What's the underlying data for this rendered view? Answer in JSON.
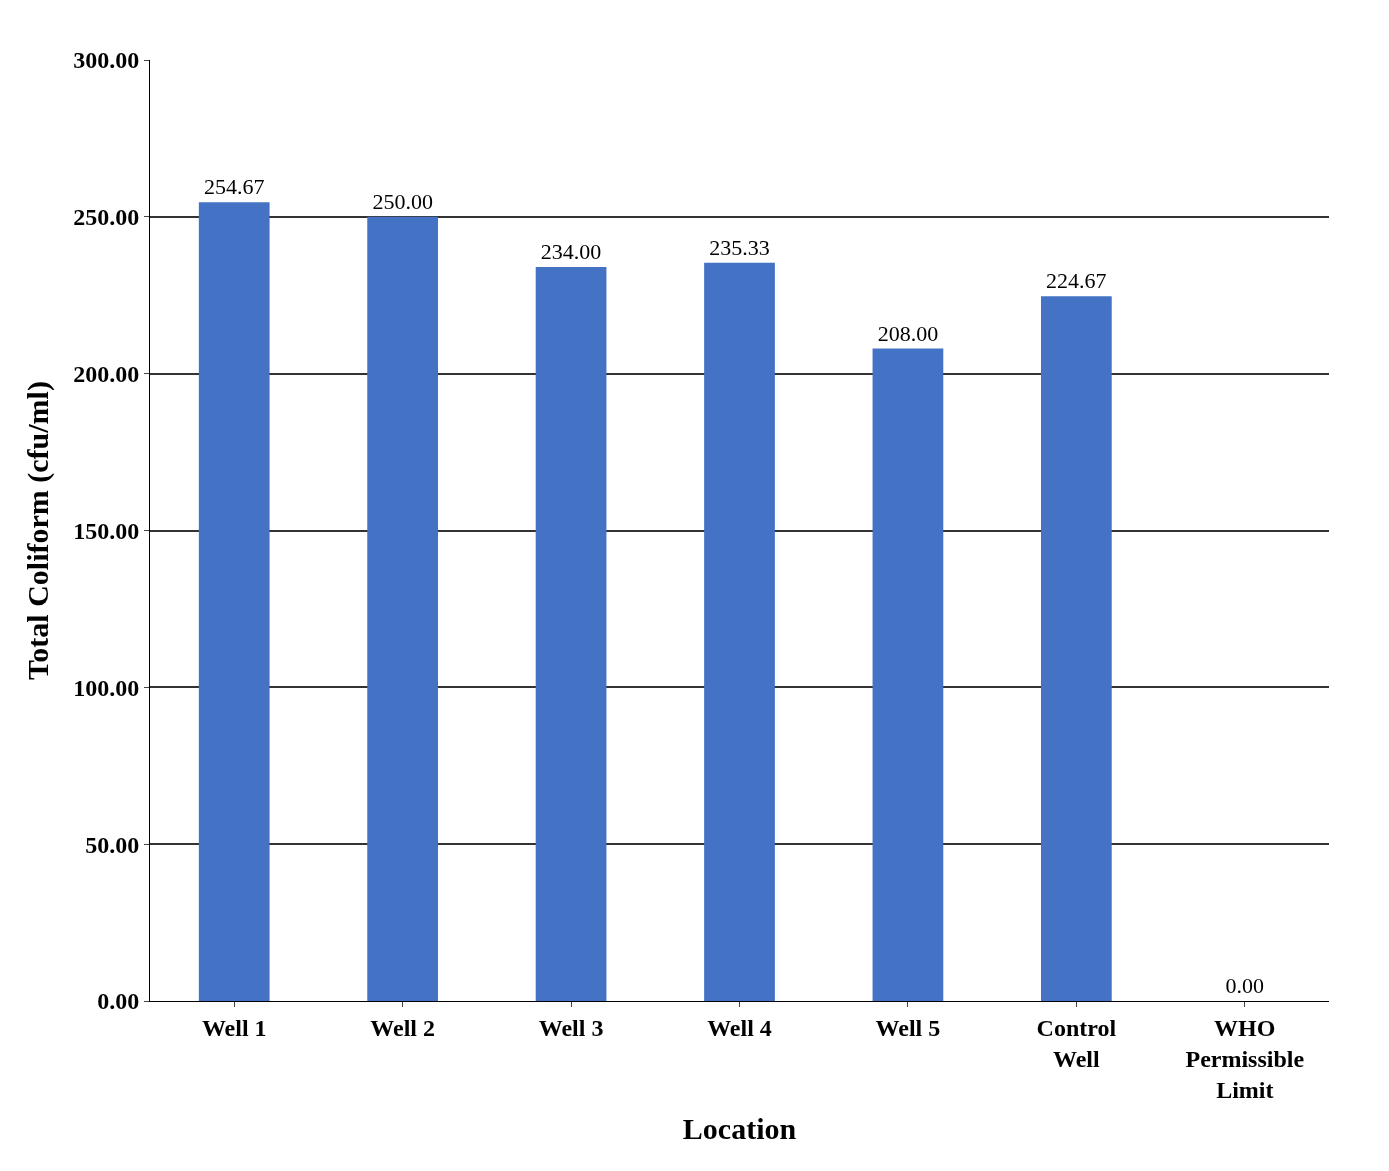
{
  "chart_data": {
    "type": "bar",
    "xlabel": "Location",
    "ylabel": "Total Coliform (cfu/ml)",
    "categories": [
      "Well 1",
      "Well 2",
      "Well 3",
      "Well 4",
      "Well 5",
      "Control Well",
      "WHO Permissible Limit"
    ],
    "values": [
      254.67,
      250.0,
      234.0,
      235.33,
      208.0,
      224.67,
      0.0
    ],
    "value_labels": [
      "254.67",
      "250.00",
      "234.00",
      "235.33",
      "208.00",
      "224.67",
      "0.00"
    ],
    "color": "#4472c4",
    "ylim": [
      0,
      300
    ],
    "yticks": [
      {
        "value": 0,
        "label": "0.00"
      },
      {
        "value": 50,
        "label": "50.00"
      },
      {
        "value": 100,
        "label": "100.00"
      },
      {
        "value": 150,
        "label": "150.00"
      },
      {
        "value": 200,
        "label": "200.00"
      },
      {
        "value": 250,
        "label": "250.00"
      },
      {
        "value": 300,
        "label": "300.00"
      }
    ],
    "grid": "y",
    "legend": false
  }
}
